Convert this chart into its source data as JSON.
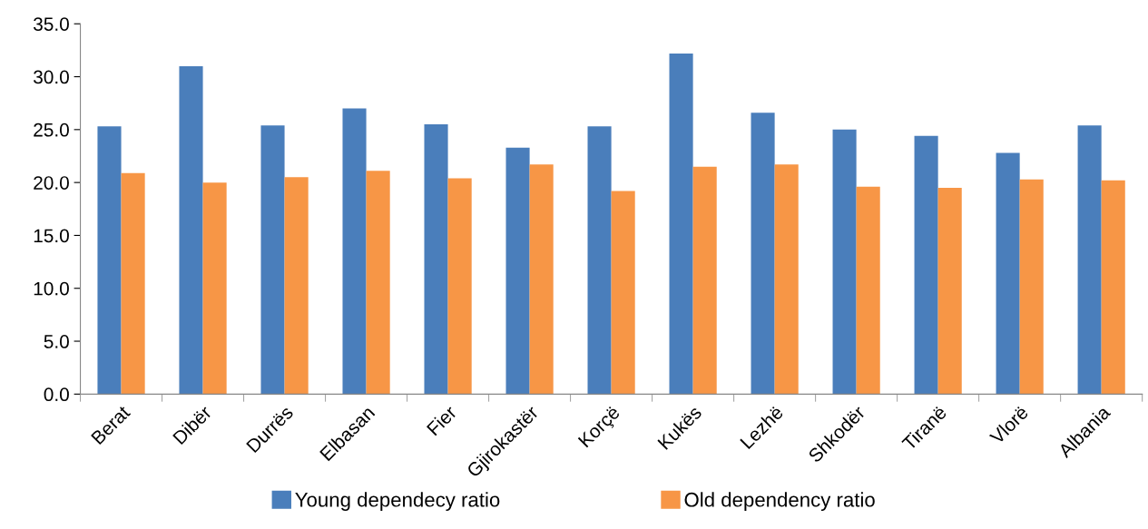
{
  "chart_data": {
    "type": "bar",
    "categories": [
      "Berat",
      "Dibër",
      "Durrës",
      "Elbasan",
      "Fier",
      "Gjirokastër",
      "Korçë",
      "Kukës",
      "Lezhë",
      "Shkodër",
      "Tiranë",
      "Vlorë",
      "Albania"
    ],
    "series": [
      {
        "name": "Young dependecy ratio",
        "color": "#4a7ebb",
        "values": [
          25.3,
          31.0,
          25.4,
          27.0,
          25.5,
          23.3,
          25.3,
          32.2,
          26.6,
          25.0,
          24.4,
          22.8,
          25.4
        ]
      },
      {
        "name": "Old dependency ratio",
        "color": "#f79646",
        "values": [
          20.9,
          20.0,
          20.5,
          21.1,
          20.4,
          21.7,
          19.2,
          21.5,
          21.7,
          19.6,
          19.5,
          20.3,
          20.2
        ]
      }
    ],
    "ylim": [
      0,
      35
    ],
    "yticks": [
      {
        "value": 0,
        "label": "0.0"
      },
      {
        "value": 5,
        "label": "5.0"
      },
      {
        "value": 10,
        "label": "10.0"
      },
      {
        "value": 15,
        "label": "15.0"
      },
      {
        "value": 20,
        "label": "20.0"
      },
      {
        "value": 25,
        "label": "25.0"
      },
      {
        "value": 30,
        "label": "30.0"
      },
      {
        "value": 35,
        "label": "35.0"
      }
    ],
    "grid": false,
    "legend": "bottom"
  }
}
